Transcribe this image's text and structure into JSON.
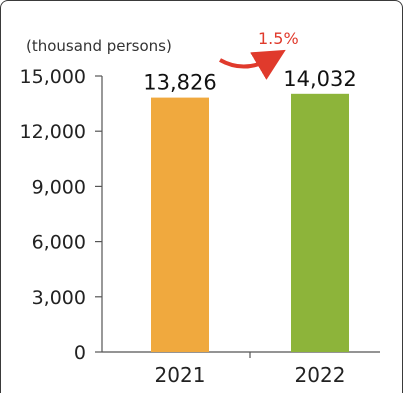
{
  "chart_data": {
    "type": "bar",
    "ylabel": "(thousand persons)",
    "categories": [
      "2021",
      "2022"
    ],
    "values": [
      13826,
      14032
    ],
    "data_labels": [
      "13,826",
      "14,032"
    ],
    "yticks": [
      "0",
      "3,000",
      "6,000",
      "9,000",
      "12,000",
      "15,000"
    ],
    "ytick_values": [
      0,
      3000,
      6000,
      9000,
      12000,
      15000
    ],
    "ylim": [
      0,
      15000
    ],
    "grid": false,
    "annotation": "1.5%",
    "colors": {
      "bars": [
        "#f0a93e",
        "#8db43a"
      ],
      "annotation": "#e03a2c",
      "axis": "#555555"
    }
  }
}
